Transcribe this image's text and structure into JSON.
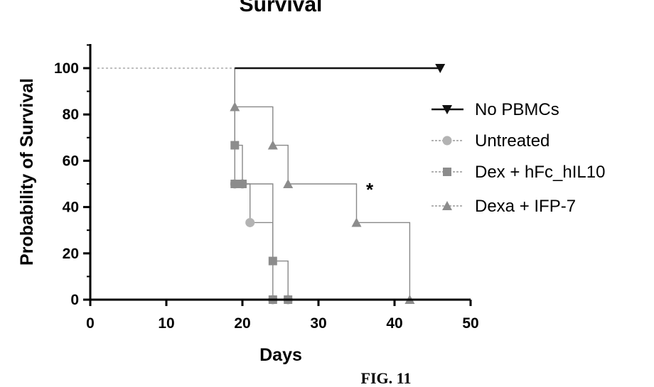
{
  "chart_data": {
    "type": "line",
    "step": true,
    "title": "Survival",
    "xlabel": "Days",
    "ylabel": "Probability of Survival",
    "xlim": [
      0,
      50
    ],
    "ylim": [
      0,
      110
    ],
    "xticks": [
      "0",
      "10",
      "20",
      "30",
      "40",
      "50"
    ],
    "yticks": [
      "0",
      "20",
      "40",
      "60",
      "80",
      "100"
    ],
    "grid": false,
    "legend_position": "right",
    "annotation": "*",
    "series": [
      {
        "name": "No PBMCs",
        "marker": "triangle-down",
        "color": "#111111",
        "x": [
          0,
          19,
          46
        ],
        "y": [
          100,
          100,
          100
        ],
        "markers": [
          [
            46,
            100
          ]
        ]
      },
      {
        "name": "Untreated",
        "marker": "circle",
        "color": "#b3b3b3",
        "x": [
          0,
          19,
          20,
          21,
          24
        ],
        "y": [
          100,
          50,
          50,
          33.3,
          0
        ],
        "markers": [
          [
            19,
            50
          ],
          [
            20,
            50
          ],
          [
            21,
            33.3
          ],
          [
            24,
            0
          ],
          [
            26,
            0
          ]
        ]
      },
      {
        "name": "Dex + hFc_hIL10",
        "marker": "square",
        "color": "#8c8c8c",
        "x": [
          0,
          19,
          20,
          24,
          26
        ],
        "y": [
          100,
          66.7,
          50,
          16.7,
          0
        ],
        "markers": [
          [
            19,
            66.7
          ],
          [
            19,
            50
          ],
          [
            20,
            50
          ],
          [
            24,
            16.7
          ],
          [
            24,
            0
          ],
          [
            26,
            0
          ]
        ]
      },
      {
        "name": "Dexa + IFP-7",
        "marker": "triangle-up",
        "color": "#8c8c8c",
        "x": [
          0,
          19,
          24,
          26,
          35,
          42
        ],
        "y": [
          100,
          83.3,
          66.7,
          50,
          33.3,
          0
        ],
        "markers": [
          [
            19,
            83.3
          ],
          [
            24,
            66.7
          ],
          [
            26,
            50
          ],
          [
            35,
            33.3
          ],
          [
            42,
            0
          ]
        ]
      }
    ]
  },
  "caption": "FIG. 11"
}
